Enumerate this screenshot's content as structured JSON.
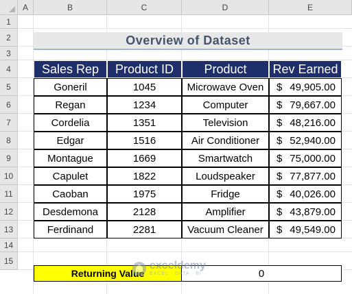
{
  "columns": [
    "A",
    "B",
    "C",
    "D",
    "E"
  ],
  "rows": [
    "1",
    "2",
    "3",
    "4",
    "5",
    "6",
    "7",
    "8",
    "9",
    "10",
    "11",
    "12",
    "13",
    "14",
    "15"
  ],
  "title": "Overview of Dataset",
  "table": {
    "headers": [
      "Sales Rep",
      "Product ID",
      "Product",
      "Rev Earned"
    ],
    "currency_symbol": "$",
    "rows": [
      {
        "rep": "Goneril",
        "id": "1045",
        "product": "Microwave Oven",
        "rev": "49,905.00"
      },
      {
        "rep": "Regan",
        "id": "1234",
        "product": "Computer",
        "rev": "79,667.00"
      },
      {
        "rep": "Cordelia",
        "id": "1351",
        "product": "Television",
        "rev": "48,216.00"
      },
      {
        "rep": "Edgar",
        "id": "1516",
        "product": "Air Conditioner",
        "rev": "52,940.00"
      },
      {
        "rep": "Montague",
        "id": "1669",
        "product": "Smartwatch",
        "rev": "75,000.00"
      },
      {
        "rep": "Capulet",
        "id": "1822",
        "product": "Loudspeaker",
        "rev": "77,877.00"
      },
      {
        "rep": "Caoban",
        "id": "1975",
        "product": "Fridge",
        "rev": "40,026.00"
      },
      {
        "rep": "Desdemona",
        "id": "2128",
        "product": "Amplifier",
        "rev": "43,879.00"
      },
      {
        "rep": "Ferdinand",
        "id": "2281",
        "product": "Vacuum Cleaner",
        "rev": "49,549.00"
      }
    ]
  },
  "returning": {
    "label": "Returning Value",
    "value": "0"
  },
  "watermark": {
    "name": "exceldemy",
    "tagline": "EXCEL · DATA · BI"
  },
  "colors": {
    "header_bg": "#1f2f6b",
    "label_bg": "#ffff00",
    "title_bg": "#e8e8e8"
  }
}
